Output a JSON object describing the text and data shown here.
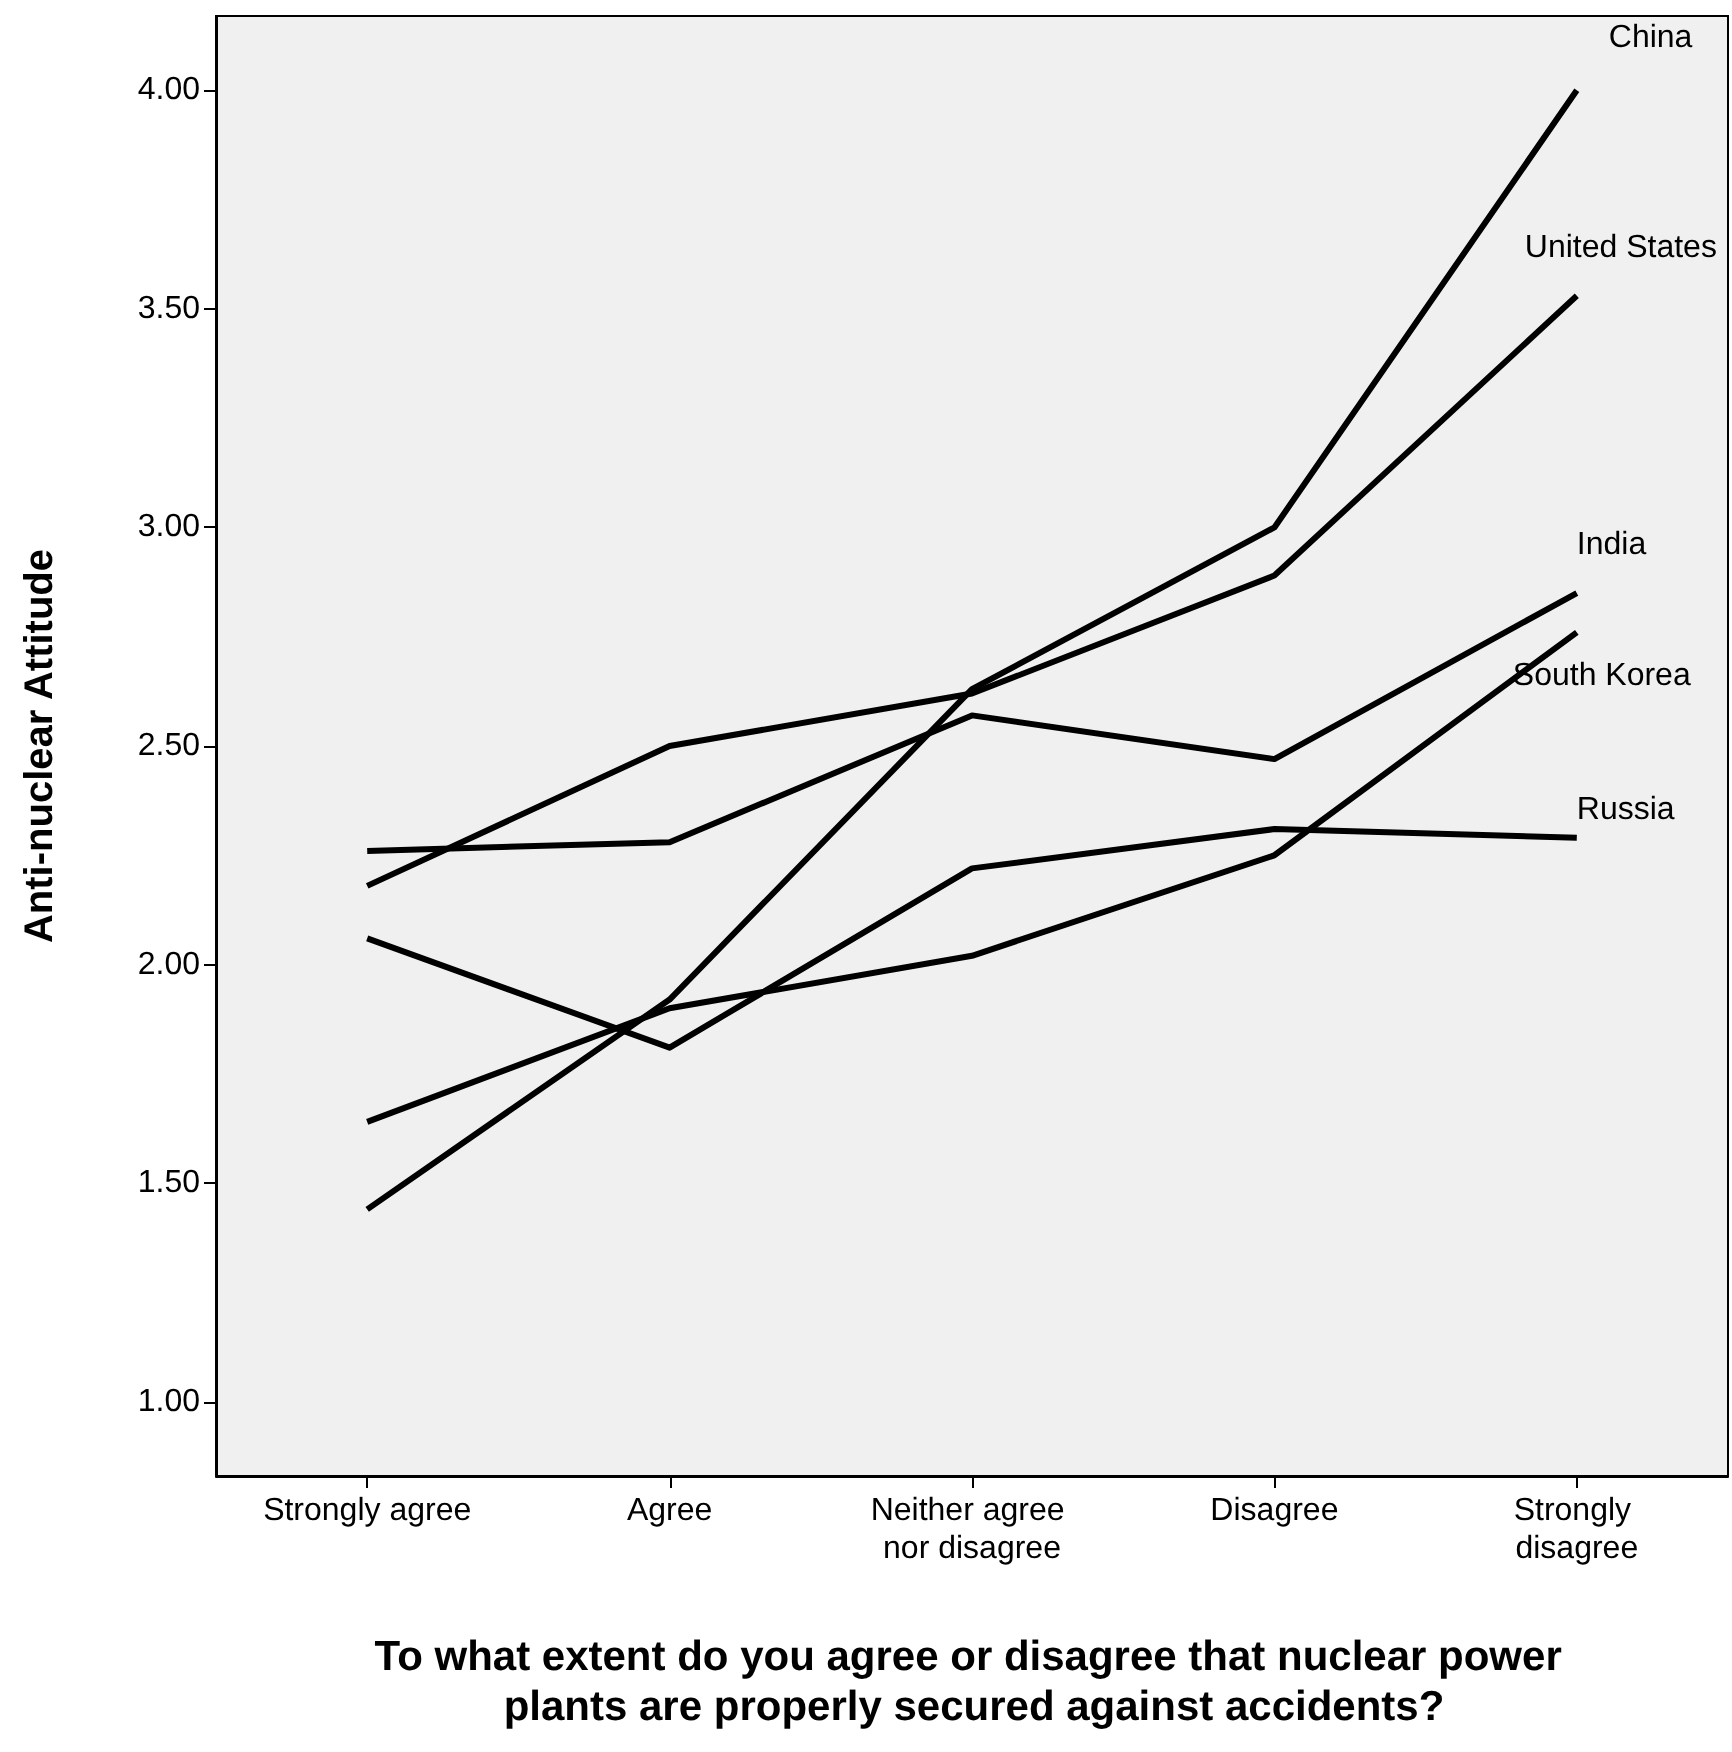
{
  "chart_data": {
    "type": "line",
    "xlabel": "To what extent do you agree or disagree that nuclear power plants are properly secured against accidents?",
    "ylabel": "Anti-nuclear Attitude",
    "categories": [
      "Strongly agree",
      "Agree",
      "Neither agree nor disagree",
      "Disagree",
      "Strongly disagree"
    ],
    "series": [
      {
        "name": "China",
        "color": "#000000",
        "values": [
          1.44,
          1.92,
          2.63,
          3.0,
          4.0
        ]
      },
      {
        "name": "United States",
        "color": "#000000",
        "values": [
          2.18,
          2.5,
          2.62,
          2.89,
          3.53
        ]
      },
      {
        "name": "India",
        "color": "#000000",
        "values": [
          2.26,
          2.28,
          2.57,
          2.47,
          2.85
        ]
      },
      {
        "name": "South Korea",
        "color": "#000000",
        "values": [
          1.64,
          1.9,
          2.02,
          2.25,
          2.76
        ]
      },
      {
        "name": "Russia",
        "color": "#000000",
        "values": [
          2.06,
          1.81,
          2.22,
          2.31,
          2.29
        ]
      }
    ],
    "ylim": [
      0.83,
      4.17
    ],
    "yticks": [
      {
        "value": 1,
        "label": "1.00"
      },
      {
        "value": 1.5,
        "label": "1.50"
      },
      {
        "value": 2,
        "label": "2.00"
      },
      {
        "value": 2.5,
        "label": "2.50"
      },
      {
        "value": 3,
        "label": "3.00"
      },
      {
        "value": 3.5,
        "label": "3.50"
      },
      {
        "value": 4,
        "label": "4.00"
      }
    ],
    "grid": false,
    "legend": false,
    "marker": "none",
    "line_style": "solid"
  }
}
